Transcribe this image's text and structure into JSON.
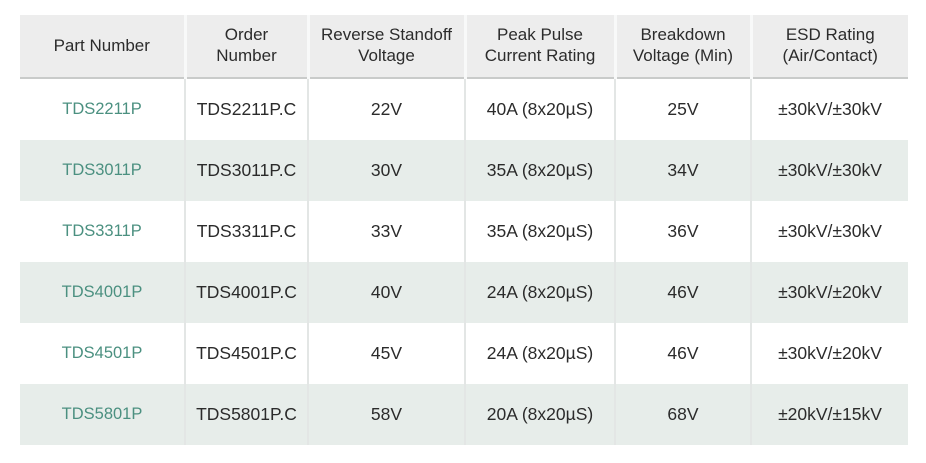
{
  "colors": {
    "page_background": "#ffffff",
    "header_background": "#ededed",
    "row_background": "#ffffff",
    "row_alt_background": "#e7edea",
    "part_number_accent": "#4b9080",
    "body_text": "#2b2b2b",
    "header_divider": "#c9cbca"
  },
  "table": {
    "header_labels": [
      "Part Number",
      "Order\nNumber",
      "Reverse Standoff\nVoltage",
      "Peak Pulse\nCurrent Rating",
      "Breakdown\nVoltage (Min)",
      "ESD Rating\n(Air/Contact)"
    ]
  },
  "chart_data": {
    "type": "table",
    "columns": [
      "Part Number",
      "Order Number",
      "Reverse Standoff Voltage",
      "Peak Pulse Current Rating",
      "Breakdown Voltage (Min)",
      "ESD Rating (Air/Contact)"
    ],
    "rows": [
      [
        "TDS2211P",
        "TDS2211P.C",
        "22V",
        "40A (8x20µS)",
        "25V",
        "±30kV/±30kV"
      ],
      [
        "TDS3011P",
        "TDS3011P.C",
        "30V",
        "35A (8x20µS)",
        "34V",
        "±30kV/±30kV"
      ],
      [
        "TDS3311P",
        "TDS3311P.C",
        "33V",
        "35A (8x20µS)",
        "36V",
        "±30kV/±30kV"
      ],
      [
        "TDS4001P",
        "TDS4001P.C",
        "40V",
        "24A (8x20µS)",
        "46V",
        "±30kV/±20kV"
      ],
      [
        "TDS4501P",
        "TDS4501P.C",
        "45V",
        "24A (8x20µS)",
        "46V",
        "±30kV/±20kV"
      ],
      [
        "TDS5801P",
        "TDS5801P.C",
        "58V",
        "20A (8x20µS)",
        "68V",
        "±20kV/±15kV"
      ]
    ]
  }
}
